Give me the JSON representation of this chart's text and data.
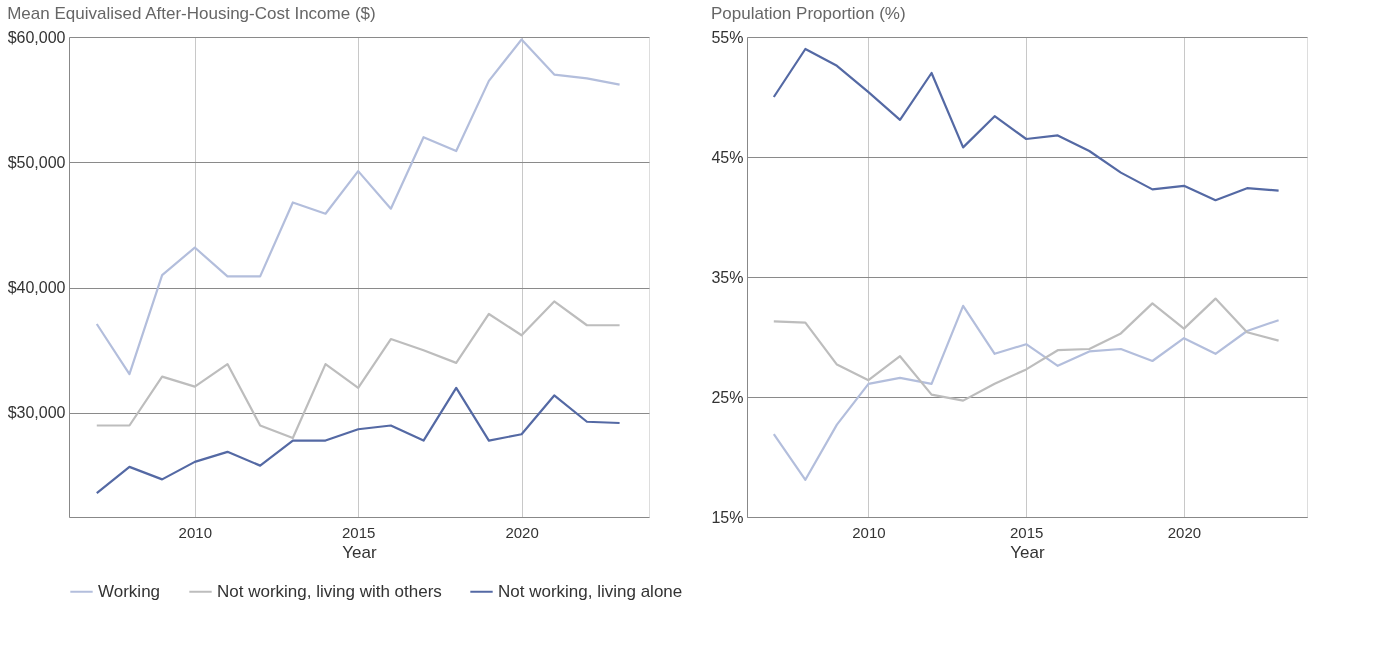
{
  "chart_data": [
    {
      "type": "line",
      "title": "Mean Equivalised After-Housing-Cost Income ($)",
      "xlabel": "Year",
      "x": [
        2007,
        2008,
        2009,
        2010,
        2011,
        2012,
        2013,
        2014,
        2015,
        2016,
        2017,
        2018,
        2019,
        2020,
        2021,
        2022,
        2023
      ],
      "xlim": [
        2006.15,
        2023.9
      ],
      "xticks": [
        2010,
        2015,
        2020
      ],
      "ylim": [
        21700,
        60000
      ],
      "yticks": [
        {
          "value": 30000,
          "label": "$30,000"
        },
        {
          "value": 40000,
          "label": "$40,000"
        },
        {
          "value": 50000,
          "label": "$50,000"
        },
        {
          "value": 60000,
          "label": "$60,000"
        }
      ],
      "grid": true,
      "legend": "bottom",
      "marker": "none",
      "line_style": "solid",
      "series": [
        {
          "name": "Working",
          "color": "#b3bedc",
          "values": [
            37100,
            33100,
            41000,
            43200,
            40900,
            40900,
            46800,
            45900,
            49300,
            46300,
            52000,
            50900,
            56500,
            59800,
            57000,
            56700,
            56200
          ]
        },
        {
          "name": "Not working, living with others",
          "color": "#bdbdbd",
          "values": [
            29000,
            29000,
            32900,
            32100,
            33900,
            29000,
            28000,
            33900,
            32000,
            35900,
            35000,
            34000,
            37900,
            36200,
            38900,
            37000,
            37000
          ]
        },
        {
          "name": "Not working, living alone",
          "color": "#5469a4",
          "values": [
            23600,
            25700,
            24700,
            26100,
            26900,
            25800,
            27800,
            27800,
            28700,
            29000,
            27800,
            32000,
            27800,
            28300,
            31400,
            29300,
            29200
          ]
        }
      ]
    },
    {
      "type": "line",
      "title": "Population Proportion (%)",
      "xlabel": "Year",
      "x": [
        2007,
        2008,
        2009,
        2010,
        2011,
        2012,
        2013,
        2014,
        2015,
        2016,
        2017,
        2018,
        2019,
        2020,
        2021,
        2022,
        2023
      ],
      "xlim": [
        2006.15,
        2023.9
      ],
      "xticks": [
        2010,
        2015,
        2020
      ],
      "ylim": [
        15,
        55
      ],
      "yticks": [
        {
          "value": 15,
          "label": "15%"
        },
        {
          "value": 25,
          "label": "25%"
        },
        {
          "value": 35,
          "label": "35%"
        },
        {
          "value": 45,
          "label": "45%"
        },
        {
          "value": 55,
          "label": "55%"
        }
      ],
      "grid": true,
      "legend": "bottom",
      "marker": "none",
      "line_style": "solid",
      "series": [
        {
          "name": "Working",
          "color": "#b3bedc",
          "values": [
            21.9,
            18.1,
            22.7,
            26.1,
            26.6,
            26.1,
            32.6,
            28.6,
            29.4,
            27.6,
            28.8,
            29.0,
            28.0,
            29.9,
            28.6,
            30.5,
            31.4
          ]
        },
        {
          "name": "Not working, living with others",
          "color": "#bdbdbd",
          "values": [
            31.3,
            31.2,
            27.7,
            26.4,
            28.4,
            25.2,
            24.7,
            26.1,
            27.3,
            28.9,
            29.0,
            30.3,
            32.8,
            30.7,
            33.2,
            30.4,
            29.7
          ]
        },
        {
          "name": "Not working, living alone",
          "color": "#5469a4",
          "values": [
            50.0,
            54.0,
            52.6,
            50.4,
            48.1,
            52.0,
            45.8,
            48.4,
            46.5,
            46.8,
            45.5,
            43.7,
            42.3,
            42.6,
            41.4,
            42.4,
            42.2
          ]
        }
      ]
    }
  ]
}
